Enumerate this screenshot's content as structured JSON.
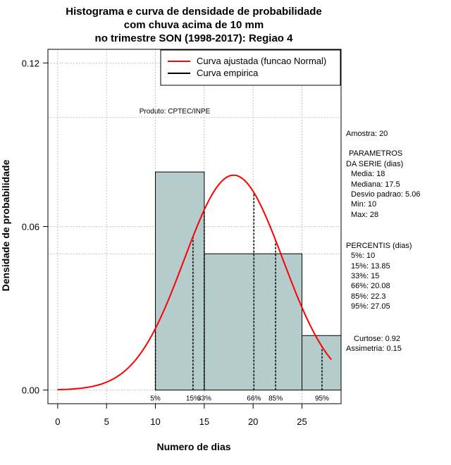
{
  "chart_data": {
    "type": "bar",
    "title": [
      "Histograma e curva de densidade de probabilidade",
      "com chuva acima de 10 mm",
      "no trimestre SON (1998-2017): Regiao 4"
    ],
    "xlabel": "Numero de dias",
    "ylabel": "Densidade de probabilidade",
    "xlim": [
      -1,
      29
    ],
    "ylim": [
      -0.005,
      0.125
    ],
    "x_ticks": [
      0,
      5,
      10,
      15,
      20,
      25
    ],
    "x_tick_labels": [
      "0",
      "5",
      "10",
      "15",
      "20",
      "25"
    ],
    "y_ticks": [
      0.0,
      0.06,
      0.12
    ],
    "y_tick_labels": [
      "0.00",
      "0.06",
      "0.12"
    ],
    "grid_x": [
      0,
      5,
      10,
      15,
      20,
      25
    ],
    "grid_y": [
      0.0,
      0.05,
      0.06,
      0.1,
      0.12
    ],
    "bins": [
      {
        "x0": 10,
        "x1": 15,
        "density": 0.08
      },
      {
        "x0": 15,
        "x1": 25,
        "density": 0.05
      },
      {
        "x0": 25,
        "x1": 30,
        "density": 0.02
      }
    ],
    "normal_curve": {
      "mean": 18,
      "sd": 5.06,
      "x_start": 0,
      "x_end": 28
    },
    "percentile_lines": [
      {
        "label": "5%",
        "value": 10
      },
      {
        "label": "15%",
        "value": 13.85
      },
      {
        "label": "33%",
        "value": 15
      },
      {
        "label": "66%",
        "value": 20.08
      },
      {
        "label": "85%",
        "value": 22.3
      },
      {
        "label": "95%",
        "value": 27.05
      }
    ],
    "legend": [
      {
        "label": "Curva ajustada (funcao Normal)",
        "color": "#ff0000"
      },
      {
        "label": "Curva empirica",
        "color": "#000000"
      }
    ],
    "legend_position": "top-right",
    "annotation": "Produto: CPTEC/INPE",
    "bar_color": "#b4cccc",
    "curve_color": "#ff0000"
  },
  "stats": {
    "sample": "Amostra: 20",
    "params_title_1": "PARAMETROS",
    "params_title_2": "DA SERIE (dias)",
    "params": [
      "Media: 18",
      "Mediana: 17.5",
      "Desvio padrao: 5.06",
      "Min: 10",
      "Max: 28"
    ],
    "percentis_title": "PERCENTIS (dias)",
    "percentis": [
      "5%: 10",
      "15%: 13.85",
      "33%: 15",
      "66%: 20.08",
      "85%: 22.3",
      "95%: 27.05"
    ],
    "curtose": "Curtose: 0.92",
    "assimetria": "Assimetria: 0.15"
  }
}
